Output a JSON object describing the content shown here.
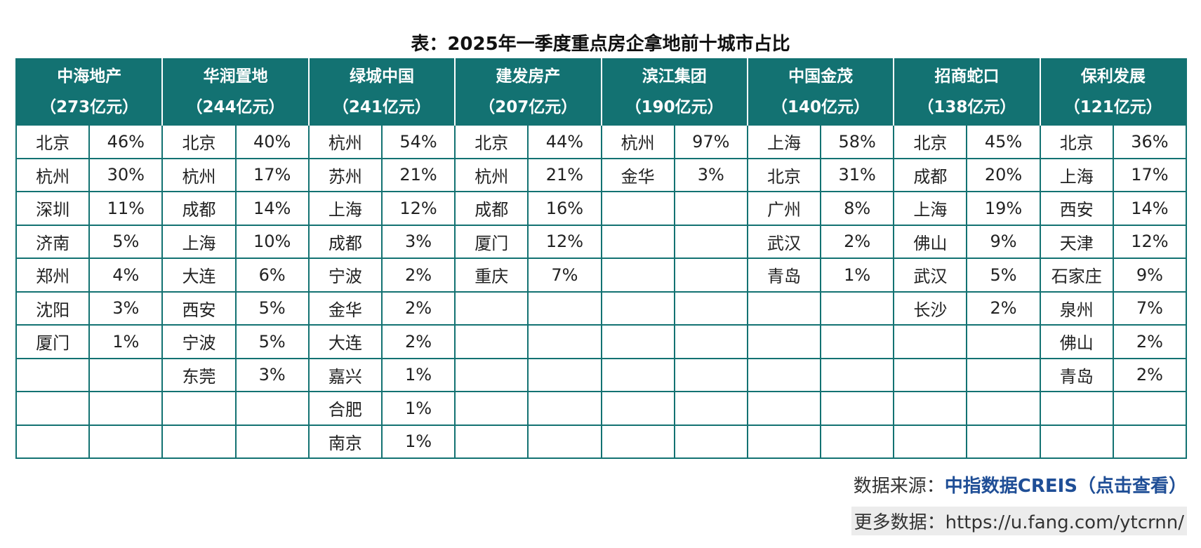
{
  "title": "表：2025年一季度重点房企拿地前十城市占比",
  "companies": [
    {
      "name": "中海地产",
      "amount": "（273亿元）",
      "cities": [
        [
          "北京",
          "46%"
        ],
        [
          "杭州",
          "30%"
        ],
        [
          "深圳",
          "11%"
        ],
        [
          "济南",
          "5%"
        ],
        [
          "郑州",
          "4%"
        ],
        [
          "沈阳",
          "3%"
        ],
        [
          "厦门",
          "1%"
        ]
      ]
    },
    {
      "name": "华润置地",
      "amount": "（244亿元）",
      "cities": [
        [
          "北京",
          "40%"
        ],
        [
          "杭州",
          "17%"
        ],
        [
          "成都",
          "14%"
        ],
        [
          "上海",
          "10%"
        ],
        [
          "大连",
          "6%"
        ],
        [
          "西安",
          "5%"
        ],
        [
          "宁波",
          "5%"
        ],
        [
          "东莞",
          "3%"
        ]
      ]
    },
    {
      "name": "绿城中国",
      "amount": "（241亿元）",
      "cities": [
        [
          "杭州",
          "54%"
        ],
        [
          "苏州",
          "21%"
        ],
        [
          "上海",
          "12%"
        ],
        [
          "成都",
          "3%"
        ],
        [
          "宁波",
          "2%"
        ],
        [
          "金华",
          "2%"
        ],
        [
          "大连",
          "2%"
        ],
        [
          "嘉兴",
          "1%"
        ],
        [
          "合肥",
          "1%"
        ],
        [
          "南京",
          "1%"
        ]
      ]
    },
    {
      "name": "建发房产",
      "amount": "（207亿元）",
      "cities": [
        [
          "北京",
          "44%"
        ],
        [
          "杭州",
          "21%"
        ],
        [
          "成都",
          "16%"
        ],
        [
          "厦门",
          "12%"
        ],
        [
          "重庆",
          "7%"
        ]
      ]
    },
    {
      "name": "滨江集团",
      "amount": "（190亿元）",
      "cities": [
        [
          "杭州",
          "97%"
        ],
        [
          "金华",
          "3%"
        ]
      ]
    },
    {
      "name": "中国金茂",
      "amount": "（140亿元）",
      "cities": [
        [
          "上海",
          "58%"
        ],
        [
          "北京",
          "31%"
        ],
        [
          "广州",
          "8%"
        ],
        [
          "武汉",
          "2%"
        ],
        [
          "青岛",
          "1%"
        ]
      ]
    },
    {
      "name": "招商蛇口",
      "amount": "（138亿元）",
      "cities": [
        [
          "北京",
          "45%"
        ],
        [
          "成都",
          "20%"
        ],
        [
          "上海",
          "19%"
        ],
        [
          "佛山",
          "9%"
        ],
        [
          "武汉",
          "5%"
        ],
        [
          "长沙",
          "2%"
        ]
      ]
    },
    {
      "name": "保利发展",
      "amount": "（121亿元）",
      "cities": [
        [
          "北京",
          "36%"
        ],
        [
          "上海",
          "17%"
        ],
        [
          "西安",
          "14%"
        ],
        [
          "天津",
          "12%"
        ],
        [
          "石家庄",
          "9%"
        ],
        [
          "泉州",
          "7%"
        ],
        [
          "佛山",
          "2%"
        ],
        [
          "青岛",
          "2%"
        ]
      ]
    }
  ],
  "footer": {
    "source_label": "数据来源：",
    "source_link": "中指数据CREIS（点击查看）",
    "more_label": "更多数据：",
    "more_url": "https://u.fang.com/ytcrnn/"
  },
  "colors": {
    "header_bg": "#137272",
    "link": "#1f4e96"
  }
}
